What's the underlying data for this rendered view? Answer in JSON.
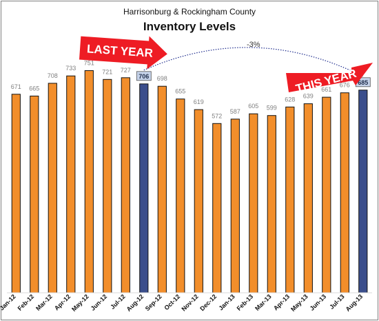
{
  "chart_data": {
    "type": "bar",
    "title": "Inventory Levels",
    "subtitle": "Harrisonburg & Rockingham County",
    "xlabel": "",
    "ylabel": "",
    "ylim": [
      0,
      780
    ],
    "grid": false,
    "legend": "none",
    "categories": [
      "Jan-12",
      "Feb-12",
      "Mar-12",
      "Apr-12",
      "May-12",
      "Jun-12",
      "Jul-12",
      "Aug-12",
      "Sep-12",
      "Oct-12",
      "Nov-12",
      "Dec-12",
      "Jan-13",
      "Feb-13",
      "Mar-13",
      "Apr-13",
      "May-13",
      "Jun-13",
      "Jul-13",
      "Aug-13"
    ],
    "values": [
      671,
      665,
      708,
      733,
      751,
      721,
      727,
      706,
      698,
      655,
      619,
      572,
      587,
      605,
      599,
      628,
      639,
      661,
      676,
      685
    ],
    "highlighted_categories": [
      "Aug-12",
      "Aug-13"
    ],
    "annotations": {
      "last_year": "LAST YEAR",
      "this_year": "THIS YEAR",
      "change": "-3%"
    },
    "colors": {
      "bar": "#f28e2b",
      "bar_highlight": "#3b4e8c",
      "bar_outline": "#111111",
      "label_highlight_bg": "#c6d3ea",
      "arrow": "#ee1c24",
      "connector": "#1c2a8c"
    }
  }
}
